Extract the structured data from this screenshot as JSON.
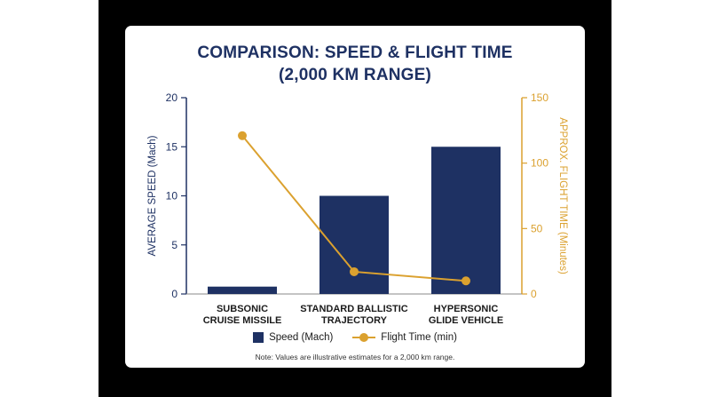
{
  "title_line1": "COMPARISON: SPEED & FLIGHT TIME",
  "title_line2": "(2,000 KM RANGE)",
  "note": "Note: Values are illustrative estimates for a 2,000 km range.",
  "colors": {
    "bar": "#1e3163",
    "line": "#dba12f",
    "title": "#1e3163"
  },
  "legend": {
    "bar_label": "Speed (Mach)",
    "line_label": "Flight Time (min)"
  },
  "chart_data": {
    "type": "bar",
    "categories": [
      [
        "SUBSONIC",
        "CRUISE MISSILE"
      ],
      [
        "STANDARD BALLISTIC",
        "TRAJECTORY"
      ],
      [
        "HYPERSONIC",
        "GLIDE VEHICLE"
      ]
    ],
    "series": [
      {
        "name": "Speed (Mach)",
        "type": "bar",
        "axis": "left",
        "values": [
          0.75,
          10,
          15
        ]
      },
      {
        "name": "Flight Time (min)",
        "type": "line",
        "axis": "right",
        "values": [
          121,
          17,
          10
        ]
      }
    ],
    "y_left": {
      "label": "AVERAGE SPEED (Mach)",
      "ylim": [
        0,
        20
      ],
      "ticks": [
        "0",
        "5",
        "10",
        "15",
        "20"
      ]
    },
    "y_right": {
      "label": "APPROX. FLIGHT TIME (Minutes)",
      "ylim": [
        0,
        150
      ],
      "ticks": [
        "0",
        "50",
        "100",
        "150"
      ]
    },
    "grid": false,
    "legend_position": "bottom"
  }
}
